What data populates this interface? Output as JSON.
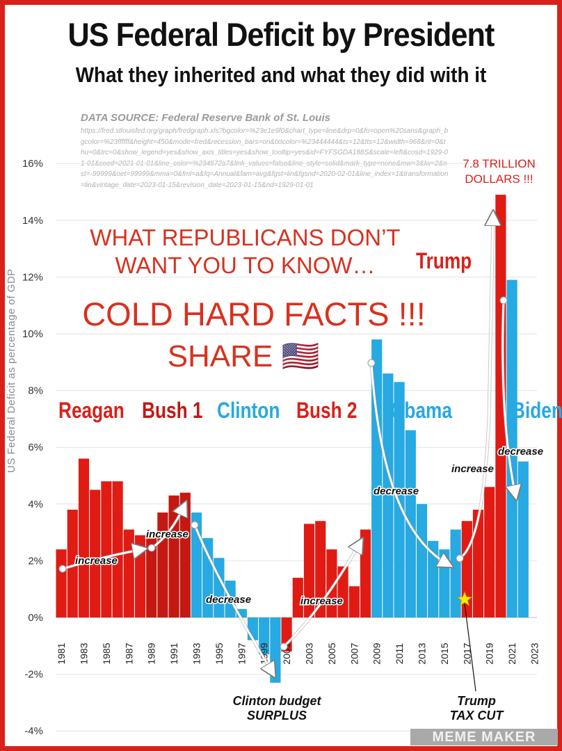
{
  "header": {
    "title": "US Federal Deficit by President",
    "subtitle": "What they inherited and what they did with it"
  },
  "source": {
    "title": "DATA SOURCE: Federal Reserve Bank of St. Louis",
    "url": "https://fred.stlouisfed.org/graph/fredgraph.xls?bgcolor=%23e1e9f0&chart_type=line&drp=0&fo=open%20sans&graph_bgcolor=%23ffffff&height=450&mode=fred&recession_bars=on&txtcolor=%23444444&ts=12&tts=12&width=968&nt=0&thu=0&trc=0&show_legend=yes&show_axis_titles=yes&show_tooltip=yes&id=FYFSGDA188S&scale=left&cosd=1929-01-01&coed=2021-01-01&line_color=%234572a7&link_values=false&line_style=solid&mark_type=none&mw=3&lw=2&ost=-99999&oet=99999&mma=0&fml=a&fq=Annual&fam=avg&fgst=lin&fgsnd=2020-02-01&line_index=1&transformation=lin&vintage_date=2023-01-15&revision_date=2023-01-15&nd=1929-01-01"
  },
  "overlay": {
    "line1": "WHAT REPUBLICANS DON’T",
    "line2": "WANT YOU TO KNOW…",
    "line3": "COLD HARD FACTS !!!",
    "line4": "SHARE 🇺🇸",
    "trillion_1": "7.8 TRILLION",
    "trillion_2": "DOLLARS !!!"
  },
  "presidents": {
    "reagan": "Reagan",
    "bush1": "Bush 1",
    "clinton": "Clinton",
    "bush2": "Bush 2",
    "obama": "Obama",
    "trump": "Trump",
    "biden": "Biden"
  },
  "annotations": {
    "clinton_1": "Clinton budget",
    "clinton_2": "SURPLUS",
    "trump_1": "Trump",
    "trump_2": "TAX CUT",
    "increase": "increase",
    "decrease": "decrease"
  },
  "watermark": "MEME MAKER",
  "colors": {
    "republican": "#e01b14",
    "republican_dark": "#c41812",
    "democrat": "#27a9e1",
    "frame": "#d8211a"
  },
  "chart_data": {
    "type": "bar",
    "ylabel": "US Federal Deficit as percentage of GDP",
    "ylim": [
      -4,
      16
    ],
    "yticks": [
      "-4%",
      "-2%",
      "0%",
      "2%",
      "4%",
      "6%",
      "8%",
      "10%",
      "12%",
      "14%",
      "16%"
    ],
    "xticks": [
      "1981",
      "1983",
      "1985",
      "1987",
      "1989",
      "1991",
      "1993",
      "1995",
      "1997",
      "1999",
      "2001",
      "2003",
      "2005",
      "2007",
      "2009",
      "2011",
      "2013",
      "2015",
      "2017",
      "2019",
      "2021",
      "2023"
    ],
    "grid": true,
    "x": [
      1981,
      1982,
      1983,
      1984,
      1985,
      1986,
      1987,
      1988,
      1989,
      1990,
      1991,
      1992,
      1993,
      1994,
      1995,
      1996,
      1997,
      1998,
      1999,
      2000,
      2001,
      2002,
      2003,
      2004,
      2005,
      2006,
      2007,
      2008,
      2009,
      2010,
      2011,
      2012,
      2013,
      2014,
      2015,
      2016,
      2017,
      2018,
      2019,
      2020,
      2021,
      2022
    ],
    "values": [
      2.4,
      3.8,
      5.6,
      4.5,
      4.8,
      4.8,
      3.1,
      2.9,
      2.8,
      3.7,
      4.3,
      4.4,
      3.7,
      2.8,
      2.1,
      1.3,
      0.3,
      -0.8,
      -1.3,
      -2.3,
      -1.2,
      1.4,
      3.3,
      3.4,
      2.4,
      1.8,
      1.1,
      3.1,
      9.8,
      8.6,
      8.3,
      6.6,
      4.0,
      2.7,
      2.4,
      3.1,
      3.4,
      3.8,
      4.6,
      14.9,
      11.9,
      5.5
    ],
    "party": [
      "R",
      "R",
      "R",
      "R",
      "R",
      "R",
      "R",
      "R",
      "R2",
      "R2",
      "R2",
      "R2",
      "D",
      "D",
      "D",
      "D",
      "D",
      "D",
      "D",
      "D",
      "R",
      "R",
      "R",
      "R",
      "R",
      "R",
      "R",
      "R",
      "D",
      "D",
      "D",
      "D",
      "D",
      "D",
      "D",
      "D",
      "R",
      "R",
      "R",
      "R",
      "D",
      "D"
    ]
  }
}
